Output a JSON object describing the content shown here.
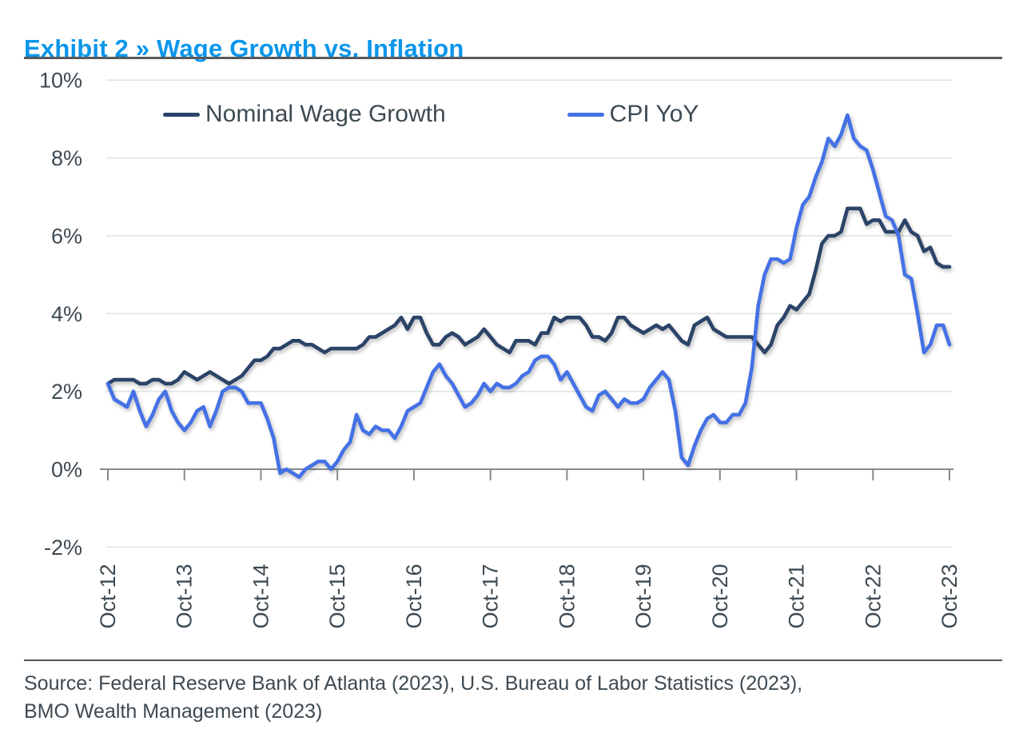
{
  "title": "Exhibit 2 » Wage Growth vs. Inflation",
  "colors": {
    "title": "#0a96eb",
    "text": "#3e4a52",
    "gridline": "#dfe5e4",
    "axis": "#85898c",
    "wage_line": "#2b4368",
    "cpi_line": "#4471e5"
  },
  "source": {
    "line1": "Source: Federal Reserve Bank of Atlanta (2023), U.S. Bureau of Labor Statistics (2023),",
    "line2": "BMO Wealth Management (2023)"
  },
  "chart_data": {
    "type": "line",
    "title": "Wage Growth vs. Inflation",
    "x_unit": "month",
    "x_range": [
      "Oct-2012",
      "Oct-2023"
    ],
    "x_tick_labels": [
      "Oct-12",
      "Oct-13",
      "Oct-14",
      "Oct-15",
      "Oct-16",
      "Oct-17",
      "Oct-18",
      "Oct-19",
      "Oct-20",
      "Oct-21",
      "Oct-22",
      "Oct-23"
    ],
    "y_ticks": [
      10,
      8,
      6,
      4,
      2,
      0,
      -2
    ],
    "y_tick_labels": [
      "10%",
      "8%",
      "6%",
      "4%",
      "2%",
      "0%",
      "-2%"
    ],
    "ylim": [
      -2,
      10
    ],
    "grid": true,
    "legend_position": "top-inside",
    "series": [
      {
        "name": "Nominal Wage Growth",
        "color": "#2b4368",
        "values": [
          2.2,
          2.3,
          2.3,
          2.3,
          2.3,
          2.2,
          2.2,
          2.3,
          2.3,
          2.2,
          2.2,
          2.3,
          2.5,
          2.4,
          2.3,
          2.4,
          2.5,
          2.4,
          2.3,
          2.2,
          2.3,
          2.4,
          2.6,
          2.8,
          2.8,
          2.9,
          3.1,
          3.1,
          3.2,
          3.3,
          3.3,
          3.2,
          3.2,
          3.1,
          3.0,
          3.1,
          3.1,
          3.1,
          3.1,
          3.1,
          3.2,
          3.4,
          3.4,
          3.5,
          3.6,
          3.7,
          3.9,
          3.6,
          3.9,
          3.9,
          3.5,
          3.2,
          3.2,
          3.4,
          3.5,
          3.4,
          3.2,
          3.3,
          3.4,
          3.6,
          3.4,
          3.2,
          3.1,
          3.0,
          3.3,
          3.3,
          3.3,
          3.2,
          3.5,
          3.5,
          3.9,
          3.8,
          3.9,
          3.9,
          3.9,
          3.7,
          3.4,
          3.4,
          3.3,
          3.5,
          3.9,
          3.9,
          3.7,
          3.6,
          3.5,
          3.6,
          3.7,
          3.6,
          3.7,
          3.5,
          3.3,
          3.2,
          3.7,
          3.8,
          3.9,
          3.6,
          3.5,
          3.4,
          3.4,
          3.4,
          3.4,
          3.4,
          3.2,
          3.0,
          3.2,
          3.7,
          3.9,
          4.2,
          4.1,
          4.3,
          4.5,
          5.1,
          5.8,
          6.0,
          6.0,
          6.1,
          6.7,
          6.7,
          6.7,
          6.3,
          6.4,
          6.4,
          6.1,
          6.1,
          6.1,
          6.4,
          6.1,
          6.0,
          5.6,
          5.7,
          5.3,
          5.2,
          5.2
        ]
      },
      {
        "name": "CPI YoY",
        "color": "#4471e5",
        "values": [
          2.2,
          1.8,
          1.7,
          1.6,
          2.0,
          1.5,
          1.1,
          1.4,
          1.8,
          2.0,
          1.5,
          1.2,
          1.0,
          1.2,
          1.5,
          1.6,
          1.1,
          1.5,
          2.0,
          2.1,
          2.1,
          2.0,
          1.7,
          1.7,
          1.7,
          1.3,
          0.8,
          -0.1,
          0.0,
          -0.1,
          -0.2,
          0.0,
          0.1,
          0.2,
          0.2,
          0.0,
          0.2,
          0.5,
          0.7,
          1.4,
          1.0,
          0.9,
          1.1,
          1.0,
          1.0,
          0.8,
          1.1,
          1.5,
          1.6,
          1.7,
          2.1,
          2.5,
          2.7,
          2.4,
          2.2,
          1.9,
          1.6,
          1.7,
          1.9,
          2.2,
          2.0,
          2.2,
          2.1,
          2.1,
          2.2,
          2.4,
          2.5,
          2.8,
          2.9,
          2.9,
          2.7,
          2.3,
          2.5,
          2.2,
          1.9,
          1.6,
          1.5,
          1.9,
          2.0,
          1.8,
          1.6,
          1.8,
          1.7,
          1.7,
          1.8,
          2.1,
          2.3,
          2.5,
          2.3,
          1.5,
          0.3,
          0.1,
          0.6,
          1.0,
          1.3,
          1.4,
          1.2,
          1.2,
          1.4,
          1.4,
          1.7,
          2.6,
          4.2,
          5.0,
          5.4,
          5.4,
          5.3,
          5.4,
          6.2,
          6.8,
          7.0,
          7.5,
          7.9,
          8.5,
          8.3,
          8.6,
          9.1,
          8.5,
          8.3,
          8.2,
          7.7,
          7.1,
          6.5,
          6.4,
          6.0,
          5.0,
          4.9,
          4.0,
          3.0,
          3.2,
          3.7,
          3.7,
          3.2
        ]
      }
    ]
  }
}
